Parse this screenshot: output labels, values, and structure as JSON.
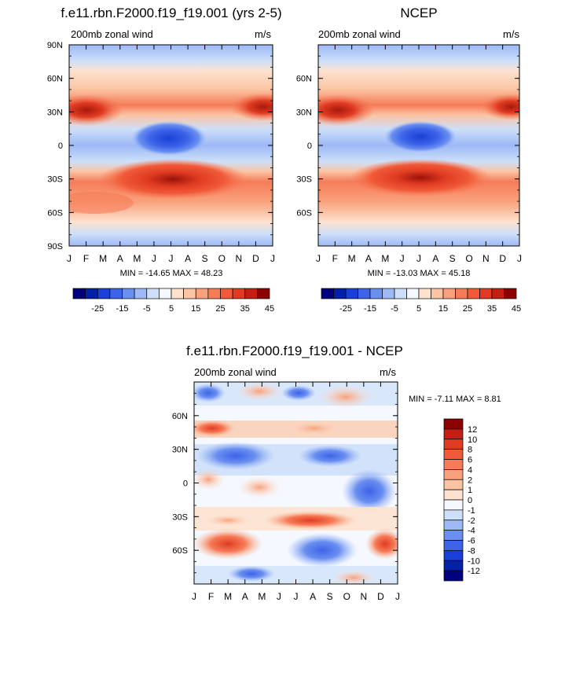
{
  "chart_data": [
    {
      "type": "heatmap",
      "panel": "model",
      "title": "f.e11.rbn.F2000.f19_f19.001 (yrs 2-5)",
      "left_label": "200mb zonal wind",
      "right_label": "m/s",
      "stats": "MIN = -14.65 MAX =  48.23",
      "min": -14.65,
      "max": 48.23,
      "x_ticks": [
        "J",
        "F",
        "M",
        "A",
        "M",
        "J",
        "J",
        "A",
        "S",
        "O",
        "N",
        "D",
        "J"
      ],
      "y_ticks": [
        "90N",
        "60N",
        "30N",
        "0",
        "30S",
        "60S",
        "90S"
      ],
      "colorbar": {
        "orientation": "horizontal",
        "labels": [
          "-25",
          "-15",
          "-5",
          "5",
          "15",
          "25",
          "35",
          "45"
        ],
        "colors": [
          "#00007f",
          "#0320a8",
          "#1a3fd6",
          "#3c63e8",
          "#6a8ff0",
          "#9db9f6",
          "#cddff9",
          "#f5f8ff",
          "#fde2cf",
          "#fbc4a4",
          "#f9a17c",
          "#f67c58",
          "#f05a38",
          "#e03b22",
          "#c21f12",
          "#8b0000"
        ]
      }
    },
    {
      "type": "heatmap",
      "panel": "obs",
      "title": "NCEP",
      "left_label": "200mb zonal wind",
      "right_label": "m/s",
      "stats": "MIN = -13.03 MAX =  45.18",
      "min": -13.03,
      "max": 45.18,
      "x_ticks": [
        "J",
        "F",
        "M",
        "A",
        "M",
        "J",
        "J",
        "A",
        "S",
        "O",
        "N",
        "D",
        "J"
      ],
      "y_ticks": [
        "60N",
        "30N",
        "0",
        "30S",
        "60S"
      ],
      "colorbar": {
        "orientation": "horizontal",
        "labels": [
          "-25",
          "-15",
          "-5",
          "5",
          "15",
          "25",
          "35",
          "45"
        ],
        "colors": [
          "#00007f",
          "#0320a8",
          "#1a3fd6",
          "#3c63e8",
          "#6a8ff0",
          "#9db9f6",
          "#cddff9",
          "#f5f8ff",
          "#fde2cf",
          "#fbc4a4",
          "#f9a17c",
          "#f67c58",
          "#f05a38",
          "#e03b22",
          "#c21f12",
          "#8b0000"
        ]
      }
    },
    {
      "type": "heatmap",
      "panel": "difference",
      "title": "f.e11.rbn.F2000.f19_f19.001 - NCEP",
      "left_label": "200mb zonal wind",
      "right_label": "m/s",
      "stats": "MIN =  -7.11 MAX =   8.81",
      "min": -7.11,
      "max": 8.81,
      "x_ticks": [
        "J",
        "F",
        "M",
        "A",
        "M",
        "J",
        "J",
        "A",
        "S",
        "O",
        "N",
        "D",
        "J"
      ],
      "y_ticks": [
        "60N",
        "30N",
        "0",
        "30S",
        "60S"
      ],
      "colorbar": {
        "orientation": "vertical",
        "labels": [
          "12",
          "10",
          "8",
          "6",
          "4",
          "2",
          "1",
          "0",
          "-1",
          "-2",
          "-4",
          "-6",
          "-8",
          "-10",
          "-12"
        ],
        "colors": [
          "#8b0000",
          "#c21f12",
          "#e03b22",
          "#f05a38",
          "#f67c58",
          "#f9a17c",
          "#fbc4a4",
          "#fde2cf",
          "#f5f8ff",
          "#cddff9",
          "#9db9f6",
          "#6a8ff0",
          "#3c63e8",
          "#1a3fd6",
          "#0320a8",
          "#00007f"
        ]
      }
    }
  ]
}
